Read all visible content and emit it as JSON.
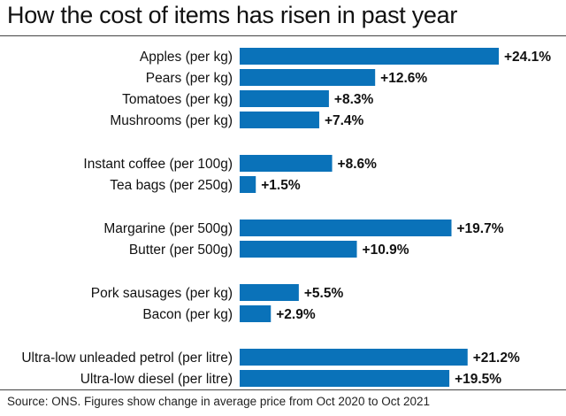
{
  "title": "How the cost of items has risen in past year",
  "source": "Source: ONS. Figures show change in average price from Oct 2020 to Oct 2021",
  "bar_color": "#0a72b9",
  "chart_data": {
    "type": "bar",
    "orientation": "horizontal",
    "title": "How the cost of items has risen in past year",
    "xlabel": "",
    "ylabel": "",
    "xlim": [
      0,
      24.1
    ],
    "grid": false,
    "categories": [
      "Apples (per kg)",
      "Pears (per kg)",
      "Tomatoes (per kg)",
      "Mushrooms (per kg)",
      "Instant coffee (per 100g)",
      "Tea bags (per 250g)",
      "Margarine (per 500g)",
      "Butter (per 500g)",
      "Pork sausages (per kg)",
      "Bacon (per kg)",
      "Ultra-low unleaded petrol (per litre)",
      "Ultra-low diesel (per litre)"
    ],
    "values": [
      24.1,
      12.6,
      8.3,
      7.4,
      8.6,
      1.5,
      19.7,
      10.9,
      5.5,
      2.9,
      21.2,
      19.5
    ],
    "data_labels": [
      "+24.1%",
      "+12.6%",
      "+8.3%",
      "+7.4%",
      "+8.6%",
      "+1.5%",
      "+19.7%",
      "+10.9%",
      "+5.5%",
      "+2.9%",
      "+21.2%",
      "+19.5%"
    ],
    "groups": [
      [
        0,
        1,
        2,
        3
      ],
      [
        4,
        5
      ],
      [
        6,
        7
      ],
      [
        8,
        9
      ],
      [
        10,
        11
      ]
    ]
  }
}
